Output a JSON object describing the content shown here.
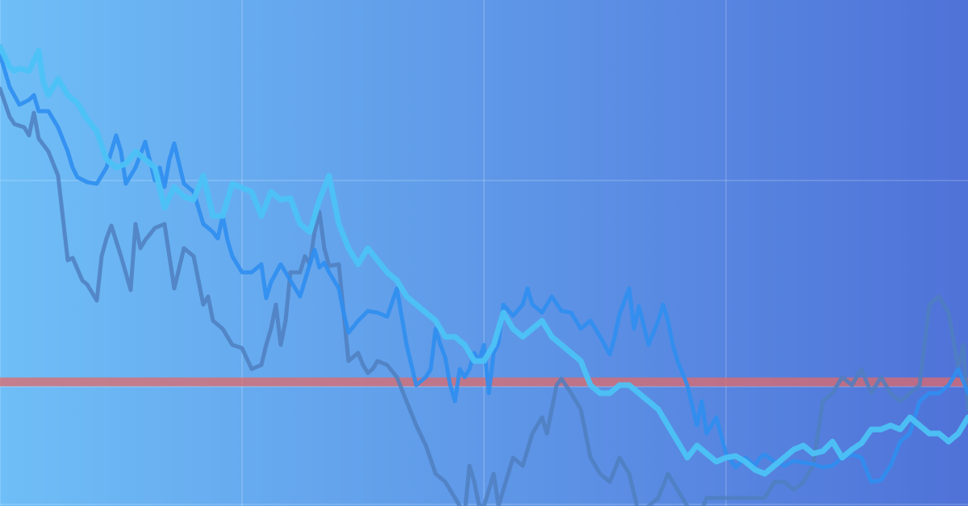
{
  "background": {
    "gradient_start": "#6fbef7",
    "gradient_end": "#4f72d8"
  },
  "colors": {
    "grid": "#ffffff",
    "reference_line": "#e06a6a",
    "series_dark": "#4f7fc0",
    "series_mid": "#2f8ef0",
    "series_light": "#4cc2f6"
  },
  "chart_data": {
    "type": "line",
    "title": "",
    "xlabel": "",
    "ylabel": "",
    "xlim": [
      0,
      200
    ],
    "ylim": [
      0,
      628
    ],
    "grid": true,
    "grid_x": [
      0,
      50,
      100,
      150
    ],
    "grid_y": [
      2,
      148,
      404
    ],
    "reference_line": 154,
    "legend": "none",
    "series": [
      {
        "x": [
          0,
          2,
          3,
          5,
          6,
          7,
          8,
          10,
          12,
          14,
          15,
          17,
          18,
          20,
          21,
          22,
          23,
          25,
          27,
          28,
          29,
          30,
          32,
          34,
          36,
          38,
          40,
          42,
          43,
          44,
          46,
          48,
          50,
          52,
          54,
          55,
          56,
          57,
          58,
          59,
          60,
          62,
          63,
          64,
          65,
          66,
          67,
          68,
          70,
          72,
          74,
          75,
          76,
          77,
          78,
          80,
          82,
          84,
          86,
          88,
          90,
          92,
          94,
          96,
          97,
          98,
          99,
          100,
          101,
          102,
          103,
          104,
          106,
          108,
          110,
          112,
          113,
          114,
          115,
          116,
          118,
          120,
          122,
          124,
          126,
          128,
          130,
          132,
          134,
          136,
          138,
          140,
          142,
          144,
          146,
          148,
          150,
          152,
          154,
          156,
          158,
          160,
          162,
          164,
          166,
          168,
          170,
          172,
          174,
          176,
          178,
          180,
          182,
          184,
          186,
          188,
          190,
          192,
          194,
          196,
          198,
          199,
          200
        ],
        "y": [
          518,
          483,
          474,
          470,
          460,
          488,
          456,
          440,
          410,
          305,
          308,
          280,
          275,
          255,
          310,
          332,
          348,
          310,
          268,
          350,
          320,
          330,
          345,
          350,
          270,
          320,
          310,
          250,
          260,
          230,
          220,
          200,
          196,
          170,
          175,
          200,
          220,
          250,
          200,
          230,
          290,
          290,
          310,
          300,
          340,
          365,
          320,
          298,
          300,
          180,
          190,
          175,
          165,
          170,
          180,
          175,
          160,
          130,
          100,
          75,
          40,
          30,
          10,
          -10,
          50,
          30,
          0,
          0,
          20,
          40,
          0,
          20,
          60,
          50,
          90,
          110,
          90,
          120,
          150,
          158,
          140,
          120,
          60,
          40,
          30,
          60,
          40,
          -10,
          0,
          10,
          40,
          20,
          0,
          -20,
          10,
          10,
          10,
          10,
          10,
          10,
          10,
          30,
          30,
          20,
          30,
          50,
          130,
          140,
          160,
          150,
          170,
          140,
          160,
          140,
          130,
          140,
          150,
          250,
          260,
          240,
          170,
          200,
          120
        ],
        "color": "#4f7fc0"
      },
      {
        "x": [
          0,
          2,
          4,
          6,
          7,
          8,
          10,
          12,
          14,
          15,
          16,
          18,
          20,
          22,
          24,
          25,
          26,
          28,
          30,
          32,
          33,
          34,
          35,
          36,
          38,
          40,
          42,
          44,
          45,
          46,
          47,
          48,
          50,
          52,
          54,
          55,
          56,
          58,
          60,
          62,
          64,
          65,
          66,
          67,
          68,
          70,
          71,
          72,
          74,
          76,
          78,
          80,
          82,
          84,
          86,
          88,
          89,
          90,
          91,
          92,
          93,
          94,
          95,
          96,
          97,
          98,
          99,
          100,
          101,
          102,
          103,
          104,
          106,
          108,
          109,
          110,
          112,
          114,
          116,
          118,
          120,
          122,
          124,
          126,
          127,
          128,
          130,
          131,
          132,
          134,
          136,
          137,
          138,
          139,
          140,
          142,
          144,
          145,
          146,
          148,
          150,
          152,
          154,
          156,
          157,
          158,
          160,
          162,
          164,
          166,
          168,
          170,
          172,
          174,
          176,
          178,
          180,
          182,
          184,
          186,
          188,
          190,
          192,
          194,
          196,
          198,
          200
        ],
        "y": [
          560,
          520,
          498,
          504,
          510,
          490,
          490,
          470,
          440,
          420,
          408,
          402,
          400,
          420,
          460,
          440,
          400,
          420,
          452,
          404,
          420,
          396,
          430,
          450,
          400,
          390,
          350,
          340,
          332,
          360,
          330,
          310,
          290,
          290,
          300,
          258,
          278,
          300,
          280,
          260,
          300,
          318,
          296,
          302,
          290,
          270,
          240,
          215,
          230,
          242,
          240,
          235,
          270,
          200,
          150,
          160,
          170,
          220,
          200,
          184,
          150,
          130,
          170,
          160,
          170,
          190,
          180,
          200,
          140,
          190,
          202,
          250,
          236,
          250,
          270,
          250,
          240,
          260,
          242,
          240,
          220,
          230,
          210,
          188,
          210,
          238,
          270,
          220,
          248,
          200,
          230,
          250,
          230,
          200,
          180,
          150,
          100,
          130,
          90,
          110,
          65,
          48,
          60,
          50,
          60,
          64,
          55,
          50,
          56,
          54,
          52,
          48,
          50,
          60,
          64,
          60,
          30,
          32,
          50,
          80,
          90,
          130,
          140,
          140,
          150,
          170,
          140
        ],
        "color": "#2f8ef0"
      },
      {
        "x": [
          0,
          2,
          3,
          4,
          6,
          8,
          9,
          10,
          12,
          13,
          14,
          16,
          18,
          20,
          22,
          24,
          26,
          28,
          30,
          32,
          34,
          36,
          38,
          40,
          42,
          44,
          46,
          48,
          50,
          52,
          54,
          56,
          58,
          60,
          62,
          64,
          66,
          68,
          70,
          72,
          74,
          76,
          78,
          80,
          82,
          84,
          86,
          88,
          90,
          92,
          94,
          96,
          98,
          100,
          102,
          104,
          106,
          108,
          110,
          112,
          114,
          116,
          118,
          120,
          122,
          124,
          126,
          128,
          130,
          132,
          134,
          136,
          138,
          140,
          142,
          144,
          146,
          148,
          150,
          152,
          154,
          156,
          158,
          160,
          162,
          164,
          166,
          168,
          170,
          172,
          174,
          176,
          178,
          180,
          182,
          184,
          186,
          188,
          190,
          192,
          194,
          196,
          198,
          200
        ],
        "y": [
          570,
          545,
          540,
          543,
          540,
          565,
          525,
          510,
          530,
          520,
          510,
          500,
          480,
          465,
          430,
          420,
          425,
          440,
          430,
          420,
          370,
          396,
          384,
          380,
          410,
          360,
          360,
          400,
          395,
          390,
          360,
          390,
          380,
          382,
          350,
          340,
          380,
          410,
          350,
          320,
          300,
          320,
          305,
          290,
          280,
          260,
          250,
          240,
          230,
          210,
          210,
          200,
          180,
          180,
          200,
          240,
          220,
          210,
          220,
          230,
          210,
          200,
          190,
          180,
          150,
          140,
          140,
          150,
          150,
          140,
          130,
          120,
          100,
          80,
          60,
          75,
          65,
          55,
          60,
          62,
          55,
          45,
          40,
          50,
          60,
          70,
          75,
          65,
          68,
          80,
          60,
          70,
          78,
          95,
          95,
          100,
          95,
          110,
          100,
          90,
          90,
          80,
          90,
          110
        ],
        "color": "#4cc2f6"
      }
    ]
  }
}
